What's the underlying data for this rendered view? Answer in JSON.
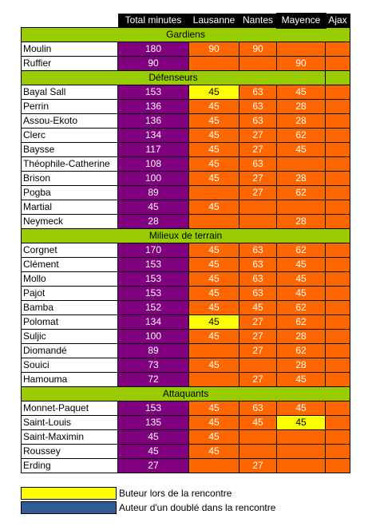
{
  "columns": [
    "Total minutes",
    "Lausanne",
    "Nantes",
    "Mayence",
    "Ajax"
  ],
  "colors": {
    "header": "#000000",
    "section": "#99cc00",
    "total": "#800080",
    "played": "#ff6600",
    "scorer": "#ffff00",
    "double": "#2e5c94"
  },
  "sections": [
    {
      "title": "Gardiens",
      "players": [
        {
          "name": "Moulin",
          "total": "180",
          "matches": [
            "90",
            "90",
            "",
            ""
          ],
          "scorer": []
        },
        {
          "name": "Ruffier",
          "total": "90",
          "matches": [
            "",
            "",
            "90",
            ""
          ],
          "scorer": []
        }
      ]
    },
    {
      "title": "Défenseurs",
      "players": [
        {
          "name": "Bayal Sall",
          "total": "153",
          "matches": [
            "45",
            "63",
            "45",
            ""
          ],
          "scorer": [
            0
          ]
        },
        {
          "name": "Perrin",
          "total": "136",
          "matches": [
            "45",
            "63",
            "28",
            ""
          ],
          "scorer": []
        },
        {
          "name": "Assou-Ekoto",
          "total": "136",
          "matches": [
            "45",
            "63",
            "28",
            ""
          ],
          "scorer": []
        },
        {
          "name": "Clerc",
          "total": "134",
          "matches": [
            "45",
            "27",
            "62",
            ""
          ],
          "scorer": []
        },
        {
          "name": "Baysse",
          "total": "117",
          "matches": [
            "45",
            "27",
            "45",
            ""
          ],
          "scorer": []
        },
        {
          "name": "Théophile-Catherine",
          "total": "108",
          "matches": [
            "45",
            "63",
            "",
            ""
          ],
          "scorer": []
        },
        {
          "name": "Brison",
          "total": "100",
          "matches": [
            "45",
            "27",
            "28",
            ""
          ],
          "scorer": []
        },
        {
          "name": "Pogba",
          "total": "89",
          "matches": [
            "",
            "27",
            "62",
            ""
          ],
          "scorer": []
        },
        {
          "name": "Martial",
          "total": "45",
          "matches": [
            "45",
            "",
            "",
            ""
          ],
          "scorer": []
        },
        {
          "name": "Neymeck",
          "total": "28",
          "matches": [
            "",
            "",
            "28",
            ""
          ],
          "scorer": []
        }
      ]
    },
    {
      "title": "Milieux de terrain",
      "players": [
        {
          "name": "Corgnet",
          "total": "170",
          "matches": [
            "45",
            "63",
            "62",
            ""
          ],
          "scorer": []
        },
        {
          "name": "Clément",
          "total": "153",
          "matches": [
            "45",
            "63",
            "45",
            ""
          ],
          "scorer": []
        },
        {
          "name": "Mollo",
          "total": "153",
          "matches": [
            "45",
            "63",
            "45",
            ""
          ],
          "scorer": []
        },
        {
          "name": "Pajot",
          "total": "153",
          "matches": [
            "45",
            "63",
            "45",
            ""
          ],
          "scorer": []
        },
        {
          "name": "Bamba",
          "total": "152",
          "matches": [
            "45",
            "45",
            "62",
            ""
          ],
          "scorer": []
        },
        {
          "name": "Polomat",
          "total": "134",
          "matches": [
            "45",
            "27",
            "62",
            ""
          ],
          "scorer": [
            0
          ]
        },
        {
          "name": "Suljic",
          "total": "100",
          "matches": [
            "45",
            "27",
            "28",
            ""
          ],
          "scorer": []
        },
        {
          "name": "Diomandé",
          "total": "89",
          "matches": [
            "",
            "27",
            "62",
            ""
          ],
          "scorer": []
        },
        {
          "name": "Souici",
          "total": "73",
          "matches": [
            "45",
            "",
            "28",
            ""
          ],
          "scorer": []
        },
        {
          "name": "Hamouma",
          "total": "72",
          "matches": [
            "",
            "27",
            "45",
            ""
          ],
          "scorer": []
        }
      ]
    },
    {
      "title": "Attaquants",
      "players": [
        {
          "name": "Monnet-Paquet",
          "total": "153",
          "matches": [
            "45",
            "63",
            "45",
            ""
          ],
          "scorer": []
        },
        {
          "name": "Saint-Louis",
          "total": "135",
          "matches": [
            "45",
            "45",
            "45",
            ""
          ],
          "scorer": [
            2
          ]
        },
        {
          "name": "Saint-Maximin",
          "total": "45",
          "matches": [
            "45",
            "",
            "",
            ""
          ],
          "scorer": []
        },
        {
          "name": "Roussey",
          "total": "45",
          "matches": [
            "45",
            "",
            "",
            ""
          ],
          "scorer": []
        },
        {
          "name": "Erding",
          "total": "27",
          "matches": [
            "",
            "27",
            "",
            ""
          ],
          "scorer": []
        }
      ]
    }
  ],
  "legend": {
    "scorer": "Buteur lors de la rencontre",
    "double": "Auteur d'un doublé dans la rencontre"
  }
}
